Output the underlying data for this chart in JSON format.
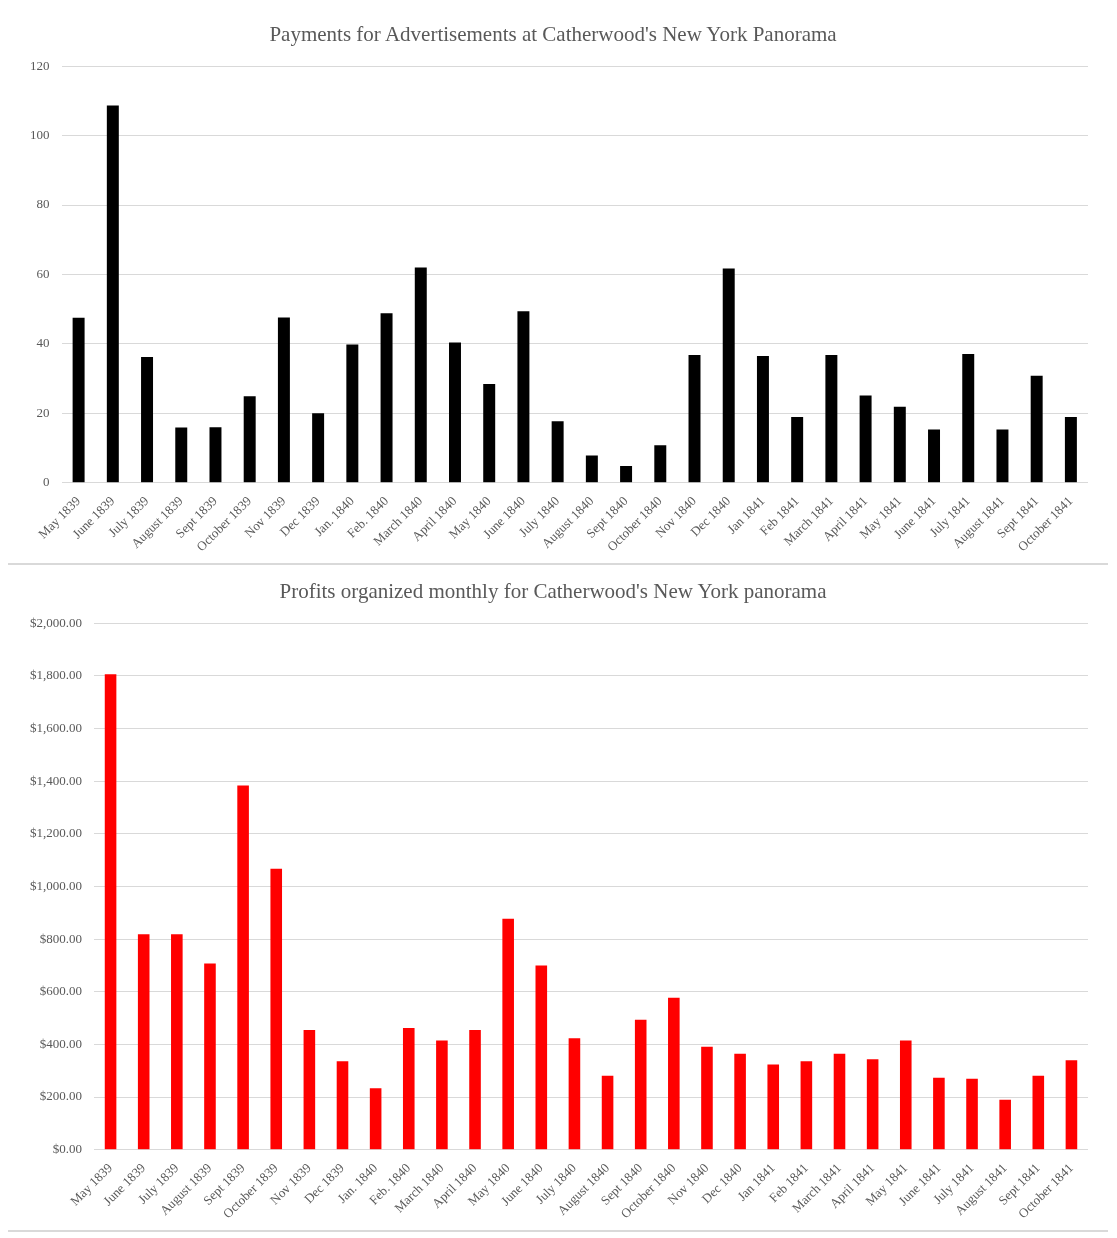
{
  "chart_data": [
    {
      "type": "bar",
      "title": "Payments for Advertisements at Catherwood's New York Panorama",
      "categories": [
        "May 1839",
        "June 1839",
        "July 1839",
        "August 1839",
        "Sept 1839",
        "October 1839",
        "Nov 1839",
        "Dec 1839",
        "Jan. 1840",
        "Feb. 1840",
        "March 1840",
        "April 1840",
        "May 1840",
        "June 1840",
        "July 1840",
        "August 1840",
        "Sept 1840",
        "October 1840",
        "Nov 1840",
        "Dec 1840",
        "Jan 1841",
        "Feb 1841",
        "March 1841",
        "April 1841",
        "May 1841",
        "June 1841",
        "July 1841",
        "August 1841",
        "Sept 1841",
        "October 1841"
      ],
      "values": [
        47.5,
        108.7,
        36.2,
        15.9,
        16,
        24.9,
        47.6,
        20,
        39.8,
        48.8,
        62,
        40.4,
        28.4,
        49.4,
        17.7,
        7.8,
        4.8,
        10.8,
        36.8,
        61.7,
        36.5,
        18.9,
        36.8,
        25.1,
        21.9,
        15.3,
        37.1,
        15.3,
        30.8,
        18.9
      ],
      "color": "#000000",
      "ylim": [
        0,
        120
      ],
      "yticks": [
        0,
        20,
        40,
        60,
        80,
        100,
        120
      ],
      "grid": "y",
      "legend": false
    },
    {
      "type": "bar",
      "title": "Profits organized monthly for Catherwood's New York panorama",
      "categories": [
        "May 1839",
        "June 1839",
        "July 1839",
        "August 1839",
        "Sept 1839",
        "October 1839",
        "Nov 1839",
        "Dec 1839",
        "Jan. 1840",
        "Feb. 1840",
        "March 1840",
        "April 1840",
        "May 1840",
        "June 1840",
        "July 1840",
        "August 1840",
        "Sept 1840",
        "October 1840",
        "Nov 1840",
        "Dec 1840",
        "Jan 1841",
        "Feb 1841",
        "March 1841",
        "April 1841",
        "May 1841",
        "June 1841",
        "July 1841",
        "August 1841",
        "Sept 1841",
        "October 1841"
      ],
      "values": [
        1806,
        818,
        818,
        707,
        1383,
        1067,
        455,
        336,
        233,
        462,
        415,
        455,
        877,
        700,
        423,
        281,
        494,
        577,
        391,
        364,
        324,
        336,
        364,
        344,
        415,
        273,
        269,
        190,
        281,
        340
      ],
      "color": "#ff0000",
      "ylim": [
        0,
        2000
      ],
      "yticks": [
        {
          "value": 0,
          "label": "$0.00"
        },
        {
          "value": 200,
          "label": "$200.00"
        },
        {
          "value": 400,
          "label": "$400.00"
        },
        {
          "value": 600,
          "label": "$600.00"
        },
        {
          "value": 800,
          "label": "$800.00"
        },
        {
          "value": 1000,
          "label": "$1,000.00"
        },
        {
          "value": 1200,
          "label": "$1,200.00"
        },
        {
          "value": 1400,
          "label": "$1,400.00"
        },
        {
          "value": 1600,
          "label": "$1,600.00"
        },
        {
          "value": 1800,
          "label": "$1,800.00"
        },
        {
          "value": 2000,
          "label": "$2,000.00"
        }
      ],
      "grid": "y",
      "legend": false
    }
  ]
}
